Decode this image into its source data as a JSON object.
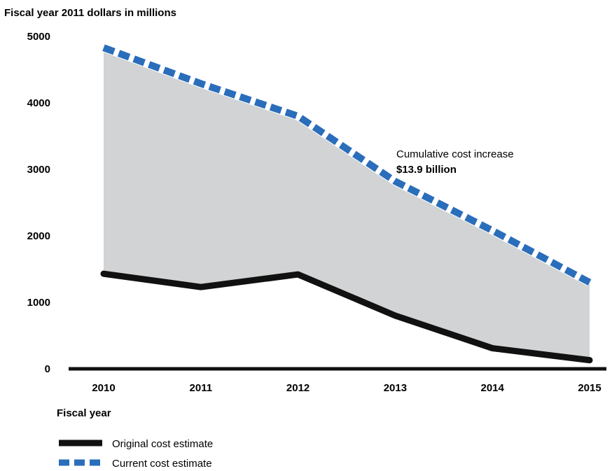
{
  "chart_data": {
    "type": "area",
    "title": "",
    "ylabel": "Fiscal year 2011 dollars in millions",
    "xlabel": "Fiscal year",
    "ylim": [
      0,
      5000
    ],
    "yticks": [
      0,
      1000,
      2000,
      3000,
      4000,
      5000
    ],
    "categories": [
      "2010",
      "2011",
      "2012",
      "2013",
      "2014",
      "2015"
    ],
    "series": [
      {
        "name": "Original cost estimate",
        "values": [
          1430,
          1230,
          1420,
          800,
          310,
          130
        ],
        "style": "solid",
        "color": "#111111"
      },
      {
        "name": "Current cost estimate",
        "values": [
          4830,
          4290,
          3800,
          2820,
          2080,
          1300
        ],
        "style": "dashed",
        "color": "#2a6ebb",
        "dash_gap_color": "#ffffff"
      }
    ],
    "fill_between": {
      "color": "#d1d3d4"
    },
    "annotation": {
      "line1": "Cumulative cost increase",
      "line2": "$13.9 billion"
    },
    "legend": {
      "placement": "bottom-left"
    },
    "grid": false
  }
}
